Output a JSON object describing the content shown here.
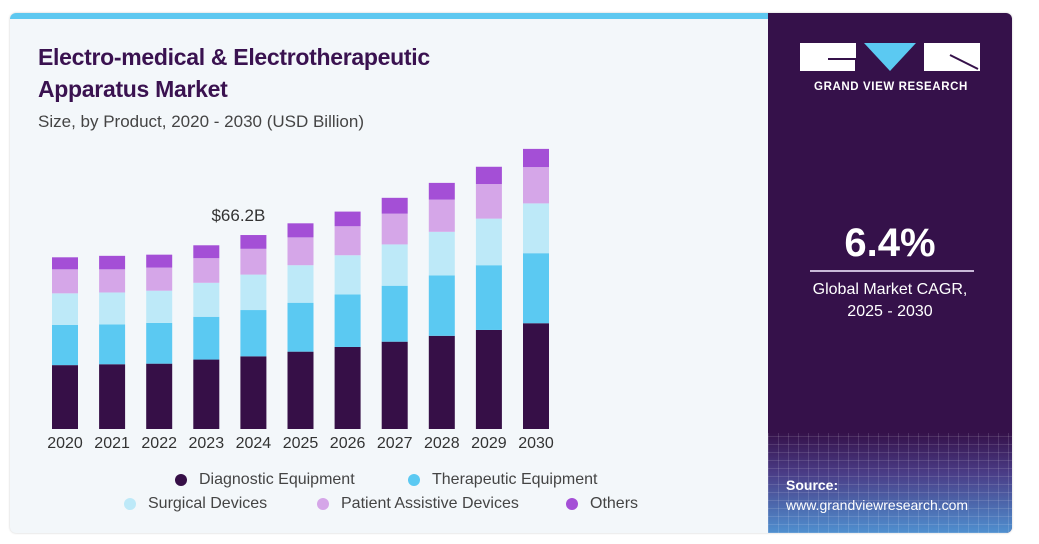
{
  "header": {
    "title_line1": "Electro-medical & Electrotherapeutic",
    "title_line2": "Apparatus Market",
    "subtitle": "Size, by Product, 2020 - 2030 (USD Billion)"
  },
  "brand": {
    "name": "GRAND VIEW RESEARCH"
  },
  "stat": {
    "value": "6.4%",
    "label_line1": "Global Market CAGR,",
    "label_line2": "2025 - 2030"
  },
  "source": {
    "label": "Source:",
    "url": "www.grandviewresearch.com"
  },
  "chart_data": {
    "type": "bar",
    "stacked": true,
    "title": "Electro-medical & Electrotherapeutic Apparatus Market",
    "subtitle": "Size, by Product, 2020 - 2030 (USD Billion)",
    "categories": [
      "2020",
      "2021",
      "2022",
      "2023",
      "2024",
      "2025",
      "2026",
      "2027",
      "2028",
      "2029",
      "2030"
    ],
    "series": [
      {
        "name": "Diagnostic Equipment",
        "color": "#360f47",
        "values": [
          21.8,
          22.1,
          22.3,
          23.7,
          24.8,
          26.4,
          28.0,
          29.8,
          31.8,
          33.8,
          36.1
        ]
      },
      {
        "name": "Therapeutic Equipment",
        "color": "#5bc9f2",
        "values": [
          13.7,
          13.6,
          13.9,
          14.6,
          15.8,
          16.7,
          17.9,
          19.1,
          20.6,
          22.1,
          23.9
        ]
      },
      {
        "name": "Surgical Devices",
        "color": "#bde9f8",
        "values": [
          10.8,
          10.9,
          11.0,
          11.6,
          12.1,
          12.8,
          13.4,
          14.1,
          14.9,
          15.9,
          17.0
        ]
      },
      {
        "name": "Patient Assistive Devices",
        "color": "#d5a6e8",
        "values": [
          8.2,
          7.9,
          7.9,
          8.4,
          8.8,
          9.5,
          9.9,
          10.5,
          11.0,
          11.8,
          12.4
        ]
      },
      {
        "name": "Others",
        "color": "#a44fd6",
        "values": [
          4.1,
          4.6,
          4.4,
          4.4,
          4.7,
          4.8,
          5.0,
          5.4,
          5.7,
          5.9,
          6.2
        ]
      }
    ],
    "annotations": [
      {
        "category": "2024",
        "text": "$66.2B"
      }
    ],
    "xlabel": "",
    "ylabel": "",
    "ylim": [
      0,
      100
    ],
    "grid": false,
    "legend": "bottom"
  }
}
